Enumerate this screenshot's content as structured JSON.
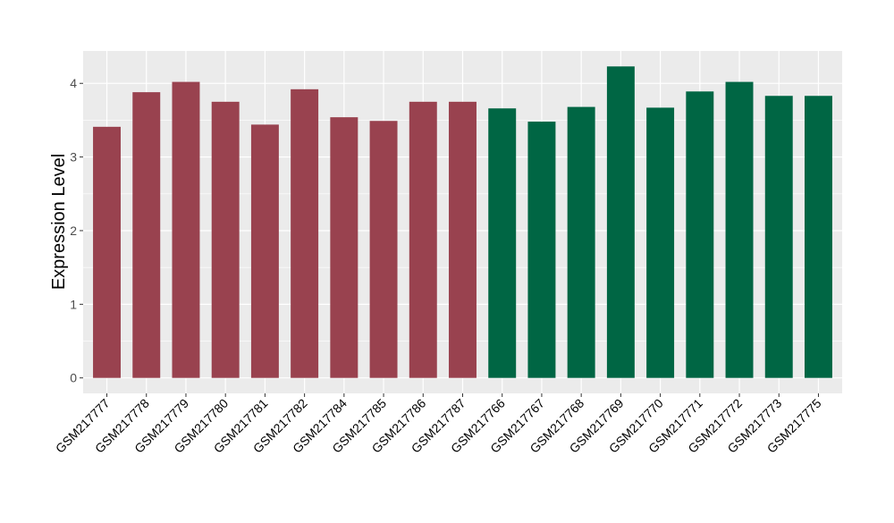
{
  "chart_data": {
    "type": "bar",
    "title": "",
    "xlabel": "",
    "ylabel": "Expression Level",
    "ylim": [
      -0.21,
      4.44
    ],
    "yticks": [
      0,
      1,
      2,
      3,
      4
    ],
    "grid": true,
    "background": "#EBEBEB",
    "categories": [
      "GSM217777",
      "GSM217778",
      "GSM217779",
      "GSM217780",
      "GSM217781",
      "GSM217782",
      "GSM217784",
      "GSM217785",
      "GSM217786",
      "GSM217787",
      "GSM217766",
      "GSM217767",
      "GSM217768",
      "GSM217769",
      "GSM217770",
      "GSM217771",
      "GSM217772",
      "GSM217773",
      "GSM217775"
    ],
    "values": [
      3.41,
      3.88,
      4.02,
      3.75,
      3.44,
      3.92,
      3.54,
      3.49,
      3.75,
      3.75,
      3.66,
      3.48,
      3.68,
      4.23,
      3.67,
      3.89,
      4.02,
      3.83,
      3.83
    ],
    "bar_colors": [
      "#99424F",
      "#99424F",
      "#99424F",
      "#99424F",
      "#99424F",
      "#99424F",
      "#99424F",
      "#99424F",
      "#99424F",
      "#99424F",
      "#006644",
      "#006644",
      "#006644",
      "#006644",
      "#006644",
      "#006644",
      "#006644",
      "#006644",
      "#006644"
    ]
  }
}
